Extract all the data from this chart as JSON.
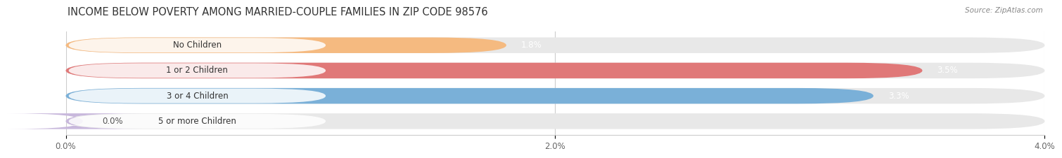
{
  "title": "INCOME BELOW POVERTY AMONG MARRIED-COUPLE FAMILIES IN ZIP CODE 98576",
  "source": "Source: ZipAtlas.com",
  "categories": [
    "No Children",
    "1 or 2 Children",
    "3 or 4 Children",
    "5 or more Children"
  ],
  "values": [
    1.8,
    3.5,
    3.3,
    0.0
  ],
  "value_labels": [
    "1.8%",
    "3.5%",
    "3.3%",
    "0.0%"
  ],
  "bar_colors": [
    "#f5ba80",
    "#e07878",
    "#7ab0d8",
    "#c8b8dc"
  ],
  "bar_bg_color": "#e8e8e8",
  "xlim": [
    0,
    4.0
  ],
  "xticks": [
    0.0,
    2.0,
    4.0
  ],
  "xtick_labels": [
    "0.0%",
    "2.0%",
    "4.0%"
  ],
  "background_color": "#ffffff",
  "title_fontsize": 10.5,
  "label_fontsize": 8.5,
  "value_fontsize": 8.5,
  "bar_height": 0.62,
  "grid_color": "#cccccc"
}
